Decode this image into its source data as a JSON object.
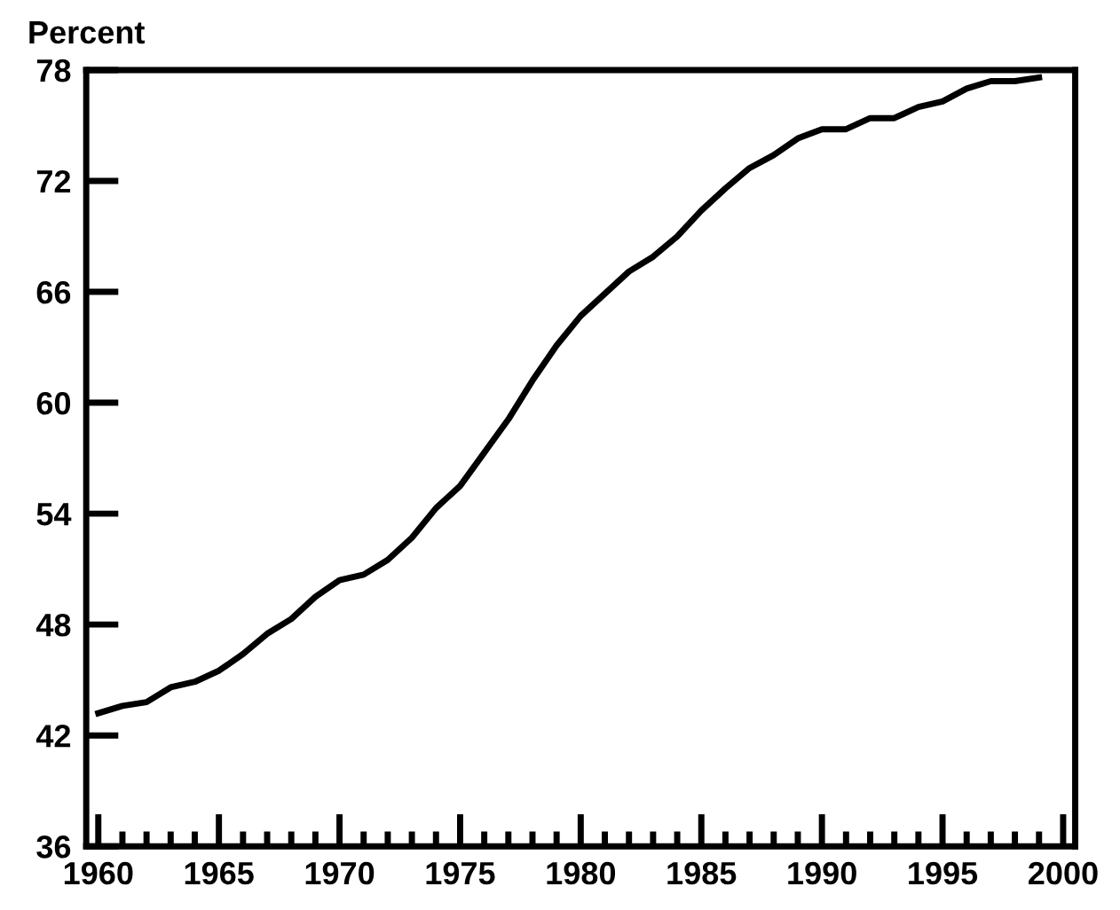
{
  "chart_data": {
    "type": "line",
    "ylabel": "Percent",
    "x": [
      1960,
      1961,
      1962,
      1963,
      1964,
      1965,
      1966,
      1967,
      1968,
      1969,
      1970,
      1971,
      1972,
      1973,
      1974,
      1975,
      1976,
      1977,
      1978,
      1979,
      1980,
      1981,
      1982,
      1983,
      1984,
      1985,
      1986,
      1987,
      1988,
      1989,
      1990,
      1991,
      1992,
      1993,
      1994,
      1995,
      1996,
      1997,
      1998,
      1999
    ],
    "series": [
      {
        "color": "#000000",
        "values": [
          43.2,
          43.6,
          43.8,
          44.6,
          44.9,
          45.5,
          46.4,
          47.5,
          48.3,
          49.5,
          50.4,
          50.7,
          51.5,
          52.7,
          54.3,
          55.5,
          57.3,
          59.1,
          61.2,
          63.1,
          64.7,
          65.9,
          67.1,
          67.9,
          69.0,
          70.4,
          71.6,
          72.7,
          73.4,
          74.3,
          74.8,
          74.8,
          75.4,
          75.4,
          76.0,
          76.3,
          77.0,
          77.4,
          77.4,
          77.6
        ]
      }
    ],
    "xlim": [
      1959.5,
      2000.5
    ],
    "ylim": [
      36,
      78
    ],
    "xticks": [
      1960,
      {
        "value": 1961,
        "label": null
      },
      {
        "value": 1962,
        "label": null
      },
      {
        "value": 1963,
        "label": null
      },
      {
        "value": 1964,
        "label": null
      },
      1965,
      {
        "value": 1966,
        "label": null
      },
      {
        "value": 1967,
        "label": null
      },
      {
        "value": 1968,
        "label": null
      },
      {
        "value": 1969,
        "label": null
      },
      1970,
      {
        "value": 1971,
        "label": null
      },
      {
        "value": 1972,
        "label": null
      },
      {
        "value": 1973,
        "label": null
      },
      {
        "value": 1974,
        "label": null
      },
      1975,
      {
        "value": 1976,
        "label": null
      },
      {
        "value": 1977,
        "label": null
      },
      {
        "value": 1978,
        "label": null
      },
      {
        "value": 1979,
        "label": null
      },
      1980,
      {
        "value": 1981,
        "label": null
      },
      {
        "value": 1982,
        "label": null
      },
      {
        "value": 1983,
        "label": null
      },
      {
        "value": 1984,
        "label": null
      },
      1985,
      {
        "value": 1986,
        "label": null
      },
      {
        "value": 1987,
        "label": null
      },
      {
        "value": 1988,
        "label": null
      },
      {
        "value": 1989,
        "label": null
      },
      1990,
      {
        "value": 1991,
        "label": null
      },
      {
        "value": 1992,
        "label": null
      },
      {
        "value": 1993,
        "label": null
      },
      {
        "value": 1994,
        "label": null
      },
      1995,
      {
        "value": 1996,
        "label": null
      },
      {
        "value": 1997,
        "label": null
      },
      {
        "value": 1998,
        "label": null
      },
      {
        "value": 1999,
        "label": null
      },
      2000
    ],
    "yticks": [
      36,
      42,
      48,
      54,
      60,
      66,
      72,
      78
    ],
    "grid": false,
    "legend": false,
    "marker": "none",
    "line_style": "solid"
  }
}
